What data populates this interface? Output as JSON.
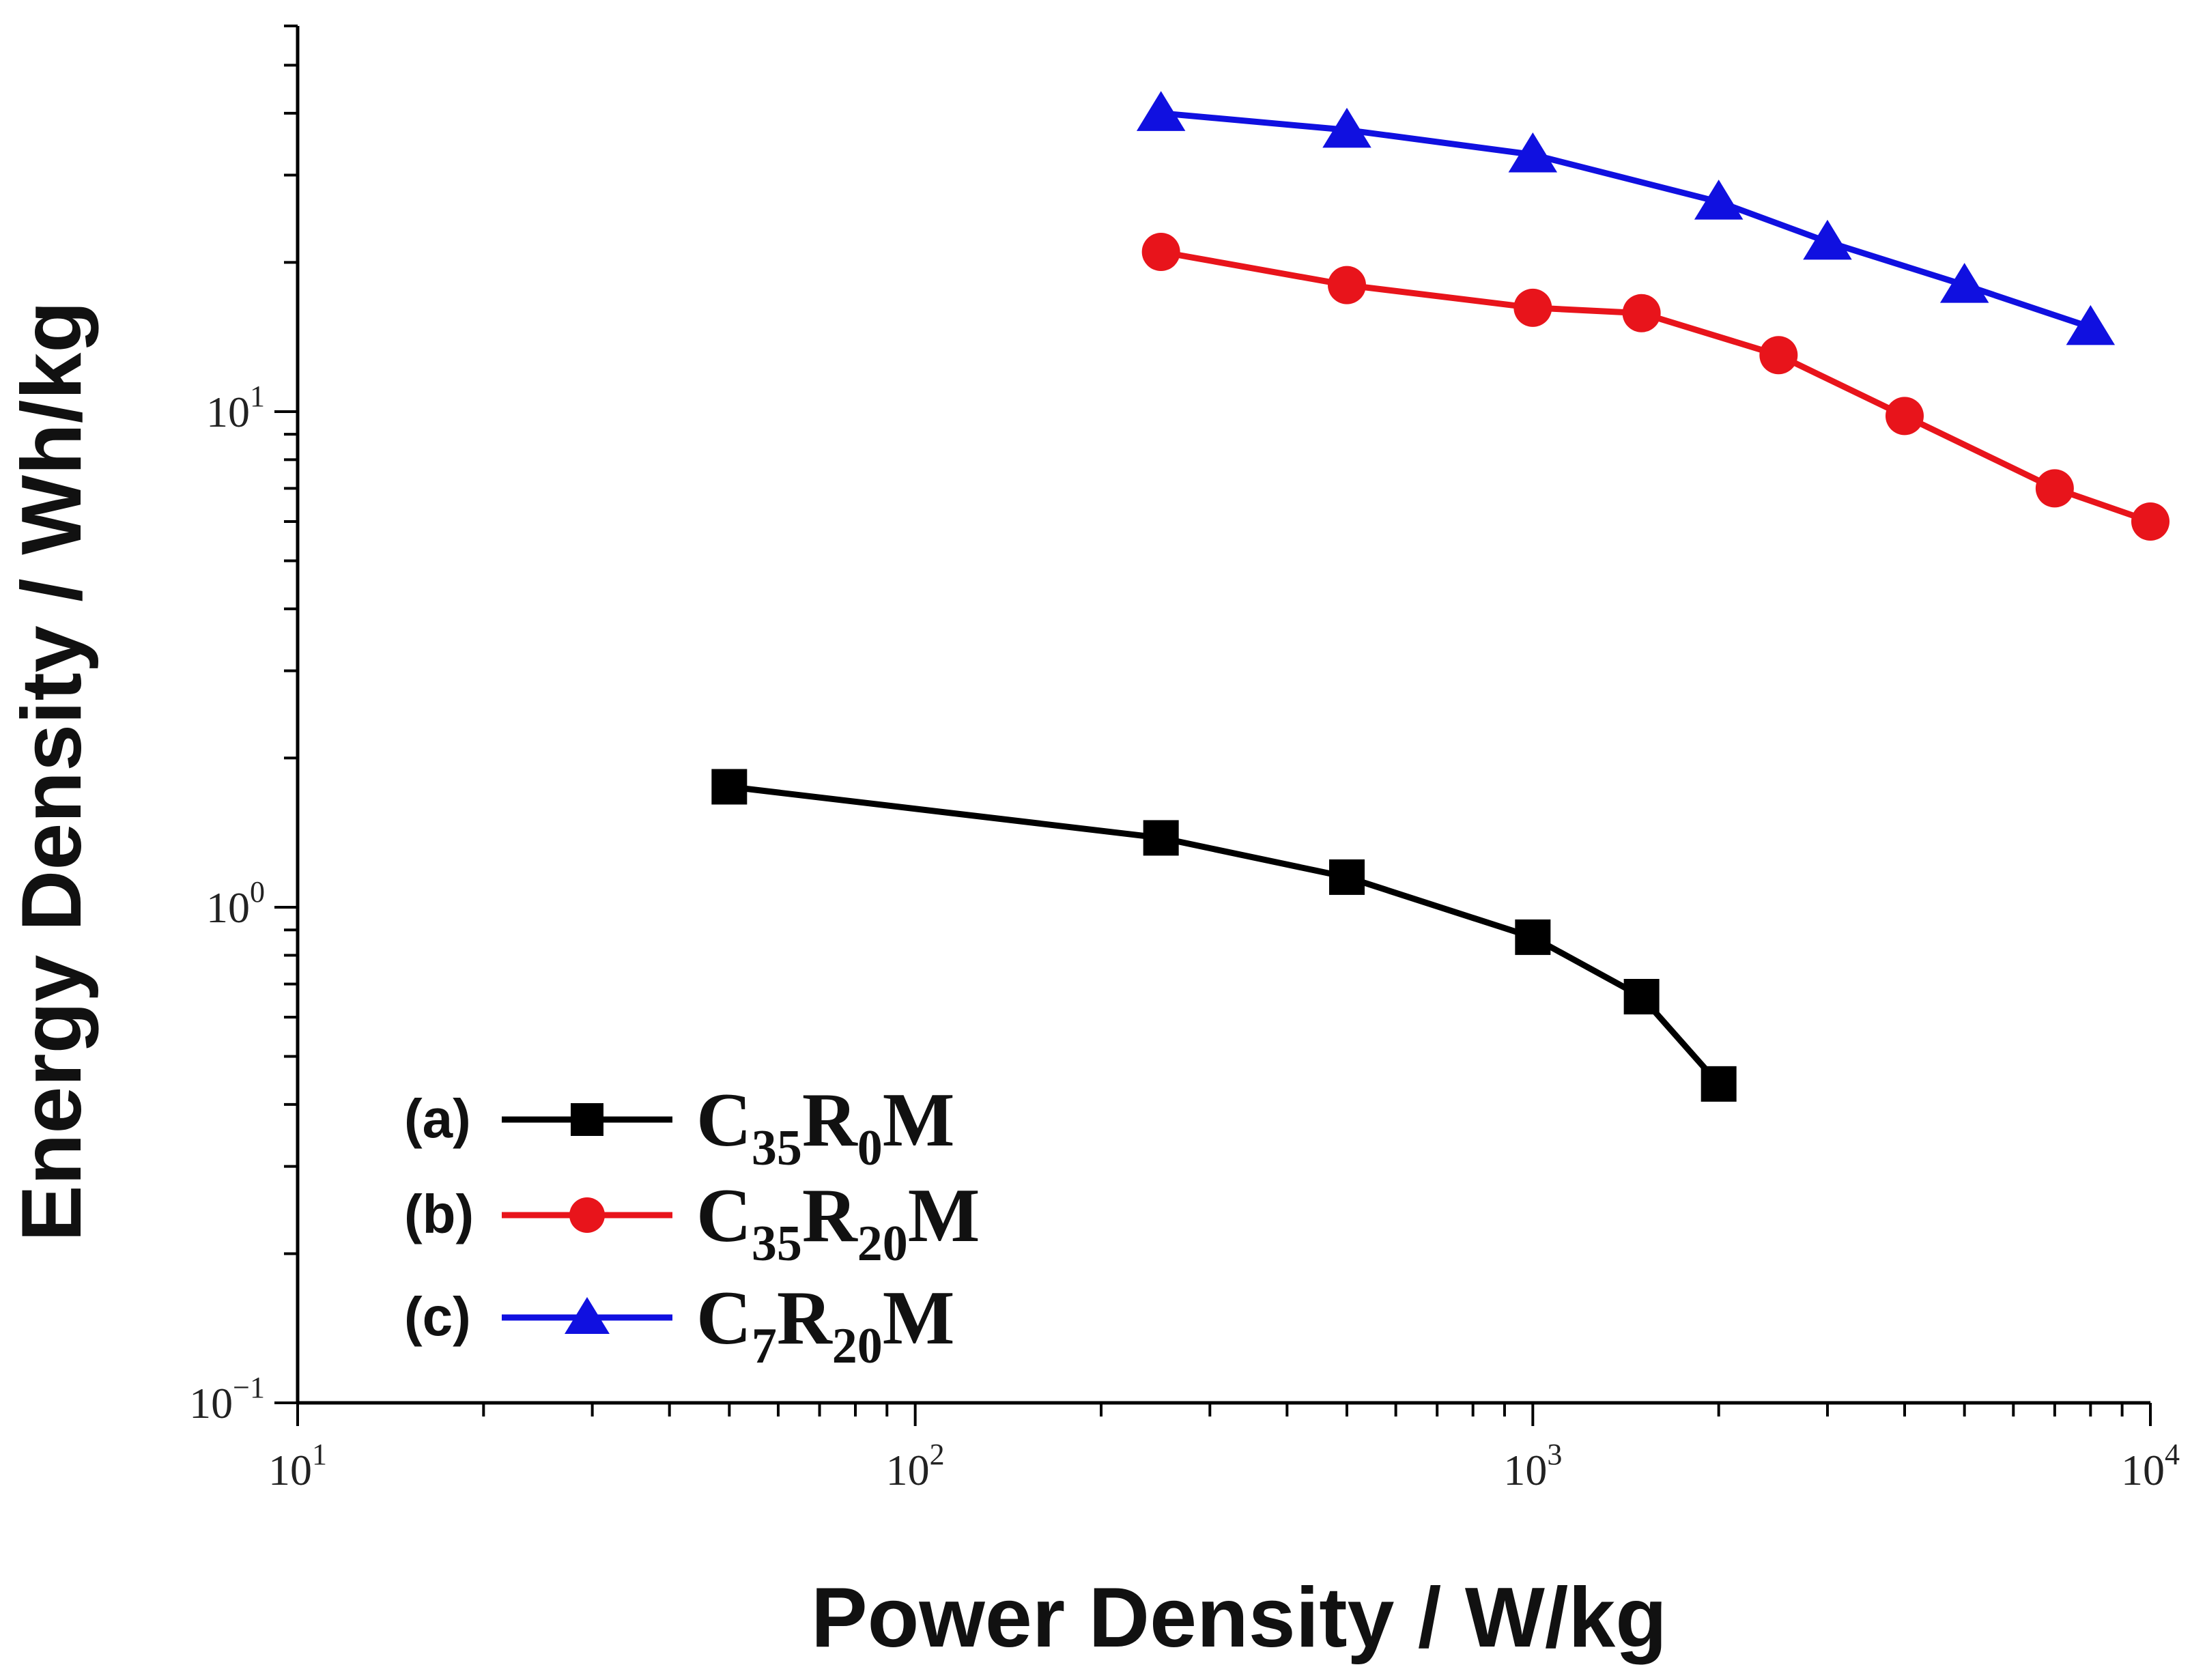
{
  "chart_data": {
    "type": "line",
    "title": "",
    "xlabel": "Power Density / W/kg",
    "ylabel": "Energy Density / Wh/kg",
    "xscale": "log",
    "yscale": "log",
    "xlim": [
      10,
      10000
    ],
    "ylim": [
      0.1,
      60
    ],
    "x_ticks": [
      {
        "value": 10,
        "base": "10",
        "exp": "1"
      },
      {
        "value": 100,
        "base": "10",
        "exp": "2"
      },
      {
        "value": 1000,
        "base": "10",
        "exp": "3"
      },
      {
        "value": 10000,
        "base": "10",
        "exp": "4"
      }
    ],
    "y_ticks": [
      {
        "value": 0.1,
        "base": "10",
        "exp": "−1"
      },
      {
        "value": 1,
        "base": "10",
        "exp": "0"
      },
      {
        "value": 10,
        "base": "10",
        "exp": "1"
      }
    ],
    "grid": false,
    "legend_position": "bottom-left",
    "series": [
      {
        "name": "C35R0M",
        "tag": "(a)",
        "label_parts": [
          [
            "C",
            ""
          ],
          [
            "35",
            "sub"
          ],
          [
            "R",
            ""
          ],
          [
            "0",
            "sub"
          ],
          [
            "M",
            ""
          ]
        ],
        "color": "#000000",
        "marker": "square",
        "x": [
          50,
          250,
          500,
          1000,
          1500,
          2000
        ],
        "y": [
          1.75,
          1.38,
          1.15,
          0.87,
          0.66,
          0.44
        ]
      },
      {
        "name": "C35R20M",
        "tag": "(b)",
        "label_parts": [
          [
            "C",
            ""
          ],
          [
            "35",
            "sub"
          ],
          [
            "R",
            ""
          ],
          [
            "20",
            "sub"
          ],
          [
            "M",
            ""
          ]
        ],
        "color": "#e8141b",
        "marker": "circle",
        "x": [
          250,
          500,
          1000,
          1500,
          2500,
          4000,
          7000,
          10000
        ],
        "y": [
          21,
          18,
          16.2,
          15.8,
          13,
          9.8,
          7,
          6
        ]
      },
      {
        "name": "C7R20M",
        "tag": "(c)",
        "label_parts": [
          [
            "C",
            ""
          ],
          [
            "7",
            "sub"
          ],
          [
            "R",
            ""
          ],
          [
            "20",
            "sub"
          ],
          [
            "M",
            ""
          ]
        ],
        "color": "#1010e0",
        "marker": "triangle",
        "x": [
          250,
          500,
          1000,
          2000,
          3000,
          5000,
          8000
        ],
        "y": [
          40,
          37,
          33,
          26.5,
          22,
          18,
          14.8
        ]
      }
    ]
  }
}
